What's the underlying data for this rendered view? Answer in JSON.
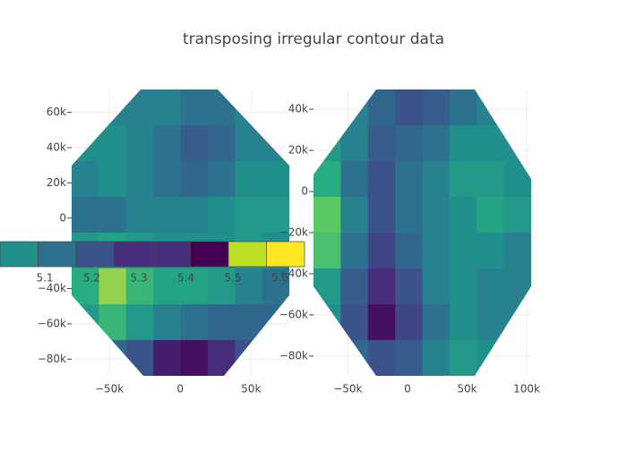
{
  "chart_data": [
    {
      "type": "contour",
      "title": "transposing irregular contour data",
      "xlim": [
        -76600,
        77000
      ],
      "ylim": [
        -89500,
        73000
      ],
      "xticks": [
        {
          "value": -50000,
          "label": "−50k"
        },
        0,
        {
          "value": 50000,
          "label": "50k"
        }
      ],
      "yticks": [
        {
          "value": -80000,
          "label": "−80k"
        },
        {
          "value": -60000,
          "label": "−60k"
        },
        {
          "value": -40000,
          "label": "−40k"
        },
        {
          "value": -20000,
          "label": "−20k"
        },
        0,
        {
          "value": 20000,
          "label": "20k"
        },
        {
          "value": 40000,
          "label": "40k"
        },
        {
          "value": 60000,
          "label": "60k"
        }
      ],
      "grid": true,
      "colorscale": [
        [
          0,
          "#440154"
        ],
        [
          0.15,
          "#472d7b"
        ],
        [
          0.3,
          "#3b528b"
        ],
        [
          0.45,
          "#2c728e"
        ],
        [
          0.55,
          "#21908d"
        ],
        [
          0.7,
          "#27ad81"
        ],
        [
          0.85,
          "#5cc863"
        ],
        [
          1,
          "#fde725"
        ]
      ],
      "z": [
        [
          0.5,
          0.5,
          0.5,
          0.5,
          0.45,
          0.45,
          0.5,
          0.5
        ],
        [
          0.55,
          0.55,
          0.5,
          0.45,
          0.35,
          0.4,
          0.5,
          0.5
        ],
        [
          0.5,
          0.55,
          0.5,
          0.45,
          0.4,
          0.45,
          0.55,
          0.55
        ],
        [
          0.45,
          0.45,
          0.5,
          0.5,
          0.5,
          0.55,
          0.6,
          0.6
        ],
        [
          0.6,
          0.65,
          0.6,
          0.55,
          0.55,
          0.55,
          0.6,
          0.55
        ],
        [
          0.7,
          0.9,
          0.75,
          0.65,
          0.65,
          0.6,
          0.5,
          0.45
        ],
        [
          0.6,
          0.75,
          0.6,
          0.5,
          0.45,
          0.4,
          0.4,
          0.4
        ],
        [
          0.45,
          0.4,
          0.3,
          0.1,
          0.05,
          0.15,
          0.3,
          0.4
        ]
      ],
      "colorbar": {
        "colors": [
          "#21908d",
          "#2c728e",
          "#3b528b",
          "#472d7b",
          "#46307e",
          "#440154",
          "#bddf26",
          "#fde725"
        ],
        "ticks": [
          5.1,
          5.2,
          5.3,
          5.4,
          5.5,
          5.6
        ]
      }
    },
    {
      "type": "contour",
      "xlim": [
        -78800,
        103700
      ],
      "ylim": [
        -89600,
        49600
      ],
      "xticks": [
        {
          "value": -50000,
          "label": "−50k"
        },
        0,
        {
          "value": 50000,
          "label": "50k"
        },
        {
          "value": 100000,
          "label": "100k"
        }
      ],
      "yticks": [
        {
          "value": -80000,
          "label": "−80k"
        },
        {
          "value": -60000,
          "label": "−60k"
        },
        {
          "value": -40000,
          "label": "−40k"
        },
        {
          "value": -20000,
          "label": "−20k"
        },
        0,
        {
          "value": 20000,
          "label": "20k"
        },
        {
          "value": 40000,
          "label": "40k"
        }
      ],
      "grid": true,
      "z": [
        [
          0.55,
          0.5,
          0.4,
          0.3,
          0.35,
          0.45,
          0.5,
          0.5
        ],
        [
          0.6,
          0.5,
          0.35,
          0.4,
          0.45,
          0.55,
          0.55,
          0.55
        ],
        [
          0.7,
          0.45,
          0.3,
          0.45,
          0.5,
          0.6,
          0.6,
          0.55
        ],
        [
          0.85,
          0.5,
          0.3,
          0.45,
          0.5,
          0.55,
          0.65,
          0.6
        ],
        [
          0.8,
          0.45,
          0.25,
          0.4,
          0.5,
          0.55,
          0.55,
          0.5
        ],
        [
          0.6,
          0.35,
          0.15,
          0.3,
          0.5,
          0.55,
          0.5,
          0.5
        ],
        [
          0.55,
          0.3,
          0.05,
          0.25,
          0.45,
          0.55,
          0.5,
          0.5
        ],
        [
          0.5,
          0.4,
          0.3,
          0.35,
          0.5,
          0.6,
          0.55,
          0.5
        ]
      ]
    }
  ]
}
